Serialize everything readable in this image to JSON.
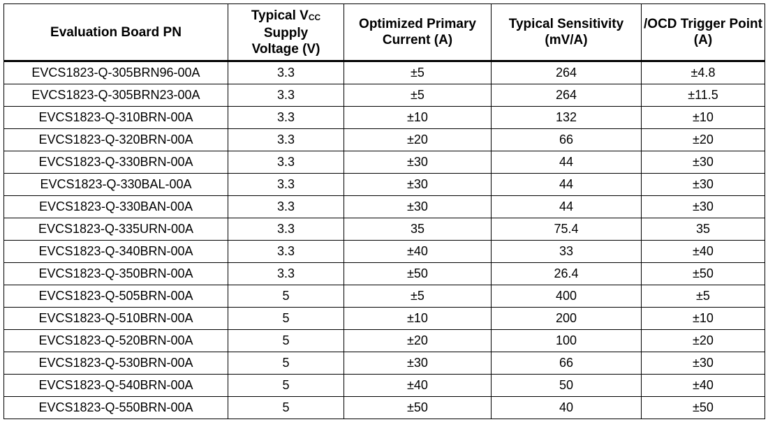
{
  "table": {
    "headers": [
      "Evaluation Board PN",
      [
        "Typical V",
        "CC",
        "Supply",
        "Voltage (V)"
      ],
      "Optimized Primary Current (A)",
      "Typical Sensitivity (mV/A)",
      "/OCD Trigger Point (A)"
    ],
    "rows": [
      [
        "EVCS1823-Q-305BRN96-00A",
        "3.3",
        "±5",
        "264",
        "±4.8"
      ],
      [
        "EVCS1823-Q-305BRN23-00A",
        "3.3",
        "±5",
        "264",
        "±11.5"
      ],
      [
        "EVCS1823-Q-310BRN-00A",
        "3.3",
        "±10",
        "132",
        "±10"
      ],
      [
        "EVCS1823-Q-320BRN-00A",
        "3.3",
        "±20",
        "66",
        "±20"
      ],
      [
        "EVCS1823-Q-330BRN-00A",
        "3.3",
        "±30",
        "44",
        "±30"
      ],
      [
        "EVCS1823-Q-330BAL-00A",
        "3.3",
        "±30",
        "44",
        "±30"
      ],
      [
        "EVCS1823-Q-330BAN-00A",
        "3.3",
        "±30",
        "44",
        "±30"
      ],
      [
        "EVCS1823-Q-335URN-00A",
        "3.3",
        "35",
        "75.4",
        "35"
      ],
      [
        "EVCS1823-Q-340BRN-00A",
        "3.3",
        "±40",
        "33",
        "±40"
      ],
      [
        "EVCS1823-Q-350BRN-00A",
        "3.3",
        "±50",
        "26.4",
        "±50"
      ],
      [
        "EVCS1823-Q-505BRN-00A",
        "5",
        "±5",
        "400",
        "±5"
      ],
      [
        "EVCS1823-Q-510BRN-00A",
        "5",
        "±10",
        "200",
        "±10"
      ],
      [
        "EVCS1823-Q-520BRN-00A",
        "5",
        "±20",
        "100",
        "±20"
      ],
      [
        "EVCS1823-Q-530BRN-00A",
        "5",
        "±30",
        "66",
        "±30"
      ],
      [
        "EVCS1823-Q-540BRN-00A",
        "5",
        "±40",
        "50",
        "±40"
      ],
      [
        "EVCS1823-Q-550BRN-00A",
        "5",
        "±50",
        "40",
        "±50"
      ]
    ]
  }
}
